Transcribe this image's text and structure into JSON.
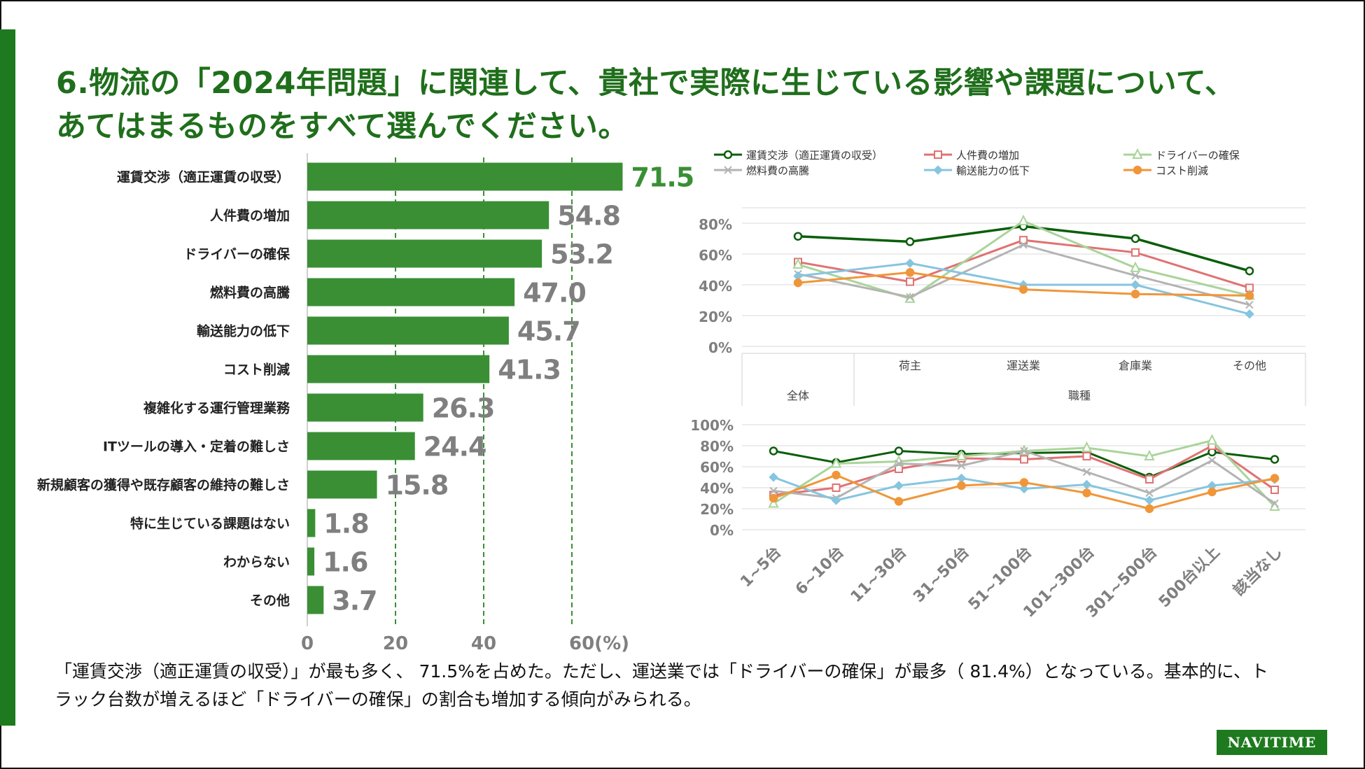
{
  "title": {
    "line1": "6.物流の「2024年問題」に関連して、貴社で実際に生じている影響や課題について、",
    "line2": "あてはまるものをすべて選んでください。"
  },
  "note": {
    "line1": "「運賃交渉（適正運賃の収受）」が最も多く、 71.5%を占めた。ただし、運送業では「ドライバーの確保」が最多（  81.4%）となっている。基本的に、ト",
    "line2": "ラック台数が増えるほど「ドライバーの確保」の割合も増加する傾向がみられる。"
  },
  "logo": "NAVITIME",
  "colors": {
    "green": "#3a8f35",
    "title_green": "#1f6e1b",
    "value_gray": "#7f7f7f",
    "series": [
      "#0b5e0b",
      "#e07272",
      "#a9d49a",
      "#b3b3b3",
      "#86c5df",
      "#f0963a"
    ]
  },
  "chart_data": [
    {
      "type": "bar",
      "orientation": "horizontal",
      "categories": [
        "運賃交渉（適正運賃の収受）",
        "人件費の増加",
        "ドライバーの確保",
        "燃料費の高騰",
        "輸送能力の低下",
        "コスト削減",
        "複雑化する運行管理業務",
        "ITツールの導入・定着の難しさ",
        "新規顧客の獲得や既存顧客の維持の難しさ",
        "特に生じている課題はない",
        "わからない",
        "その他"
      ],
      "values": [
        71.5,
        54.8,
        53.2,
        47.0,
        45.7,
        41.3,
        26.3,
        24.4,
        15.8,
        1.8,
        1.6,
        3.7
      ],
      "value_labels": [
        "71.5",
        "54.8",
        "53.2",
        "47.0",
        "45.7",
        "41.3",
        "26.3",
        "24.4",
        "15.8",
        "1.8",
        "1.6",
        "3.7"
      ],
      "xticks": [
        0,
        20,
        40,
        60
      ],
      "xtick_labels": [
        "0",
        "20",
        "40",
        "60(%)"
      ],
      "xlim": [
        0,
        72
      ],
      "grid": "dashed vertical at 20, 40, 60"
    },
    {
      "type": "line",
      "categories": [
        "全体",
        "荷主",
        "運送業",
        "倉庫業",
        "その他"
      ],
      "group_label": "職種",
      "yticks": [
        0,
        20,
        40,
        60,
        80
      ],
      "ytick_labels": [
        "0%",
        "20%",
        "40%",
        "60%",
        "80%"
      ],
      "ylim": [
        0,
        90
      ],
      "legend": "top",
      "series": [
        {
          "name": "運賃交渉（適正運賃の収受）",
          "marker": "circle",
          "values": [
            71.5,
            68,
            78,
            70,
            49
          ]
        },
        {
          "name": "人件費の増加",
          "marker": "square",
          "values": [
            54.8,
            42,
            69,
            61,
            38
          ]
        },
        {
          "name": "ドライバーの確保",
          "marker": "triangle",
          "values": [
            53.2,
            31,
            81.4,
            51,
            33
          ]
        },
        {
          "name": "燃料費の高騰",
          "marker": "x",
          "values": [
            47.0,
            32,
            66,
            46,
            27
          ]
        },
        {
          "name": "輸送能力の低下",
          "marker": "diamond",
          "values": [
            45.7,
            54,
            40,
            40,
            21
          ]
        },
        {
          "name": "コスト削減",
          "marker": "circle",
          "values": [
            41.3,
            48,
            37,
            34,
            33
          ]
        }
      ]
    },
    {
      "type": "line",
      "categories": [
        "1~5台",
        "6~10台",
        "11~30台",
        "31~50台",
        "51~100台",
        "101~300台",
        "301~500台",
        "500台以上",
        "該当なし"
      ],
      "yticks": [
        0,
        20,
        40,
        60,
        80,
        100
      ],
      "ytick_labels": [
        "0%",
        "20%",
        "40%",
        "60%",
        "80%",
        "100%"
      ],
      "ylim": [
        0,
        100
      ],
      "series": [
        {
          "name": "運賃交渉（適正運賃の収受）",
          "values": [
            75,
            64,
            75,
            72,
            73,
            74,
            50,
            74,
            67
          ]
        },
        {
          "name": "人件費の増加",
          "values": [
            33,
            40,
            58,
            68,
            67,
            70,
            48,
            80,
            38
          ]
        },
        {
          "name": "ドライバーの確保",
          "values": [
            25,
            63,
            65,
            70,
            75,
            78,
            70,
            85,
            22
          ]
        },
        {
          "name": "燃料費の高騰",
          "values": [
            37,
            30,
            63,
            61,
            75,
            55,
            35,
            66,
            25
          ]
        },
        {
          "name": "輸送能力の低下",
          "values": [
            50,
            28,
            42,
            49,
            39,
            43,
            28,
            42,
            48
          ]
        },
        {
          "name": "コスト削減",
          "values": [
            30,
            52,
            27,
            42,
            45,
            35,
            20,
            36,
            49
          ]
        }
      ]
    }
  ]
}
